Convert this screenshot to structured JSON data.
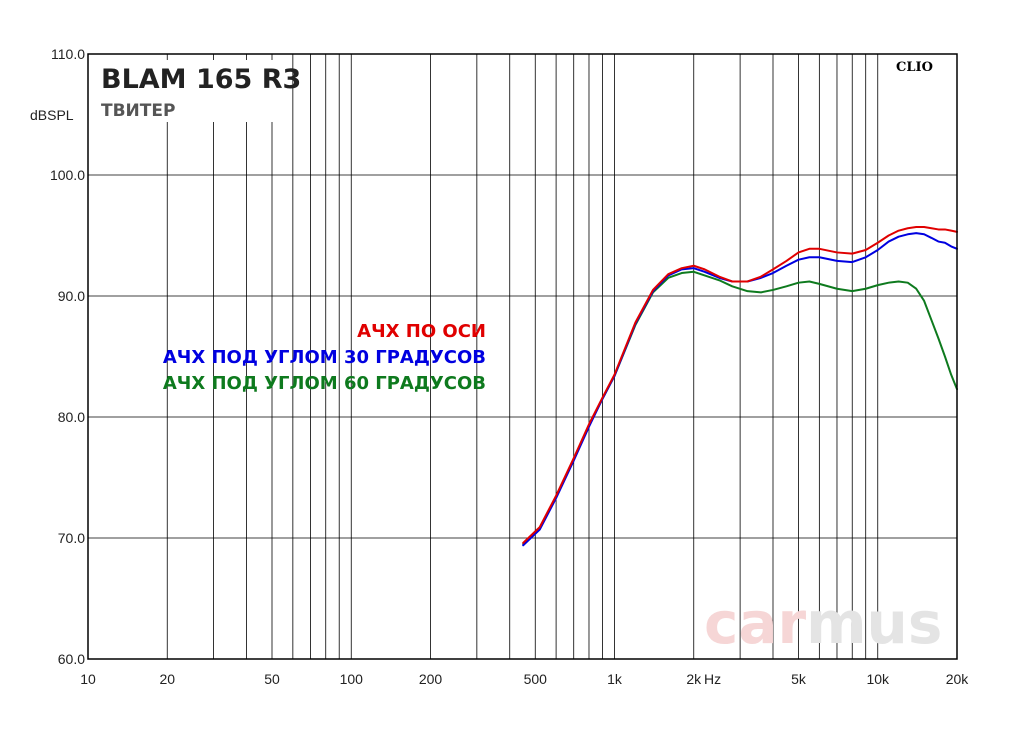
{
  "chart_data": {
    "type": "line",
    "title": "BLAM 165 R3",
    "subtitle": "ТВИТЕР",
    "ylabel": "dBSPL",
    "xunit": "Hz",
    "xscale": "log",
    "xlim": [
      10,
      20000
    ],
    "ylim": [
      60,
      110
    ],
    "grid": true,
    "brand": "CLIO",
    "watermark": {
      "part1": "car",
      "part2": "mus"
    },
    "y_ticks": [
      "60.0",
      "70.0",
      "80.0",
      "90.0",
      "100.0",
      "110.0"
    ],
    "y_tick_values": [
      60,
      70,
      80,
      90,
      100,
      110
    ],
    "x_ticks": [
      {
        "value": 10,
        "label": "10"
      },
      {
        "value": 20,
        "label": "20"
      },
      {
        "value": 50,
        "label": "50"
      },
      {
        "value": 100,
        "label": "100"
      },
      {
        "value": 200,
        "label": "200"
      },
      {
        "value": 500,
        "label": "500"
      },
      {
        "value": 1000,
        "label": "1k"
      },
      {
        "value": 2000,
        "label": "2k"
      },
      {
        "value": 5000,
        "label": "5k"
      },
      {
        "value": 10000,
        "label": "10k"
      },
      {
        "value": 20000,
        "label": "20k"
      }
    ],
    "series": [
      {
        "name": "АЧХ ПО ОСИ",
        "color": "#e00000",
        "x": [
          450,
          520,
          600,
          700,
          800,
          900,
          1000,
          1200,
          1400,
          1600,
          1800,
          2000,
          2200,
          2500,
          2800,
          3200,
          3600,
          4000,
          4500,
          5000,
          5500,
          6000,
          7000,
          8000,
          9000,
          10000,
          11000,
          12000,
          13000,
          14000,
          15000,
          16000,
          17000,
          18000,
          19000,
          20000
        ],
        "y": [
          69.6,
          70.9,
          73.5,
          76.6,
          79.4,
          81.6,
          83.5,
          87.8,
          90.5,
          91.8,
          92.3,
          92.5,
          92.2,
          91.6,
          91.2,
          91.2,
          91.6,
          92.2,
          92.9,
          93.6,
          93.9,
          93.9,
          93.6,
          93.5,
          93.8,
          94.4,
          95.0,
          95.4,
          95.6,
          95.7,
          95.7,
          95.6,
          95.5,
          95.5,
          95.4,
          95.3
        ]
      },
      {
        "name": "АЧХ ПОД УГЛОМ 30 ГРАДУСОВ",
        "color": "#0000e0",
        "x": [
          450,
          520,
          600,
          700,
          800,
          900,
          1000,
          1200,
          1400,
          1600,
          1800,
          2000,
          2200,
          2500,
          2800,
          3200,
          3600,
          4000,
          4500,
          5000,
          5500,
          6000,
          7000,
          8000,
          9000,
          10000,
          11000,
          12000,
          13000,
          14000,
          15000,
          16000,
          17000,
          18000,
          19000,
          20000
        ],
        "y": [
          69.4,
          70.7,
          73.3,
          76.4,
          79.2,
          81.5,
          83.4,
          87.7,
          90.4,
          91.7,
          92.2,
          92.3,
          92.0,
          91.5,
          91.2,
          91.2,
          91.5,
          91.9,
          92.5,
          93.0,
          93.2,
          93.2,
          92.9,
          92.8,
          93.2,
          93.8,
          94.5,
          94.9,
          95.1,
          95.2,
          95.1,
          94.8,
          94.5,
          94.4,
          94.1,
          93.9
        ]
      },
      {
        "name": "АЧХ ПОД УГЛОМ 60 ГРАДУСОВ",
        "color": "#0e7a1e",
        "x": [
          450,
          520,
          600,
          700,
          800,
          900,
          1000,
          1200,
          1400,
          1600,
          1800,
          2000,
          2200,
          2500,
          2800,
          3200,
          3600,
          4000,
          4500,
          5000,
          5500,
          6000,
          7000,
          8000,
          9000,
          10000,
          11000,
          12000,
          13000,
          14000,
          15000,
          16000,
          17000,
          18000,
          19000,
          20000
        ],
        "y": [
          69.5,
          70.8,
          73.4,
          76.5,
          79.3,
          81.5,
          83.4,
          87.6,
          90.3,
          91.5,
          91.9,
          92.0,
          91.7,
          91.3,
          90.8,
          90.4,
          90.3,
          90.5,
          90.8,
          91.1,
          91.2,
          91.0,
          90.6,
          90.4,
          90.6,
          90.9,
          91.1,
          91.2,
          91.1,
          90.6,
          89.6,
          88.0,
          86.5,
          85.0,
          83.5,
          82.3
        ]
      }
    ]
  }
}
